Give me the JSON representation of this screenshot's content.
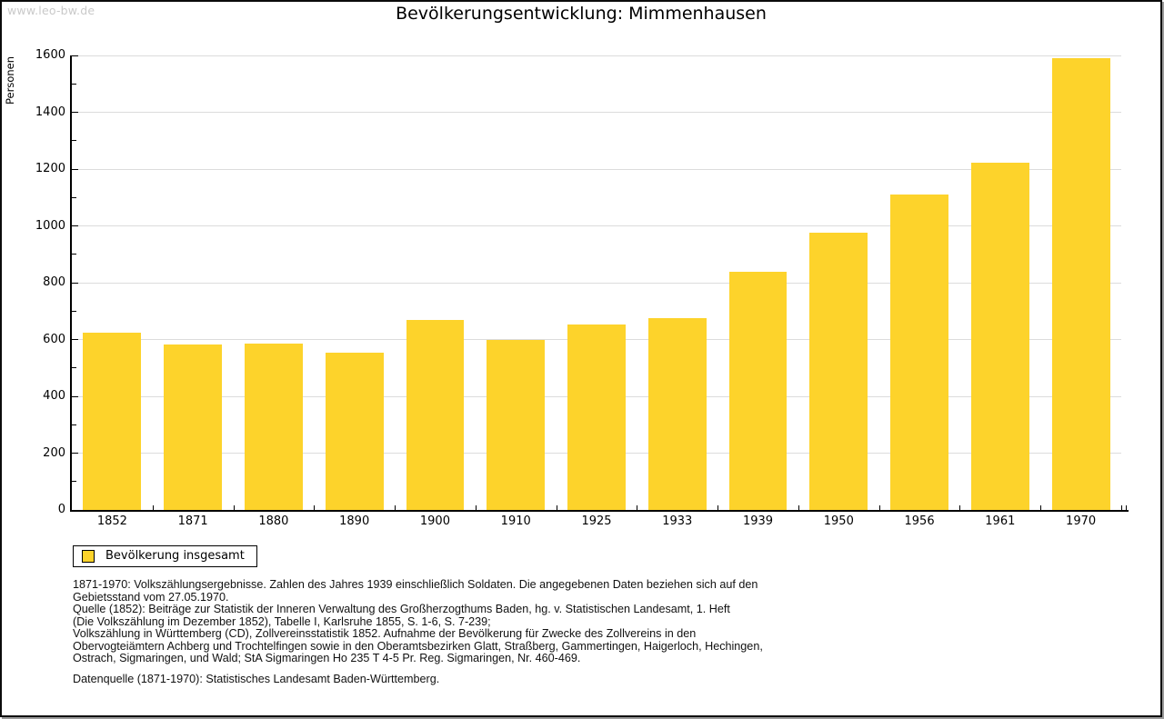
{
  "window": {
    "watermark": "www.leo-bw.de",
    "title": "Bevölkerungsentwicklung: Mimmenhausen"
  },
  "chart_data": {
    "type": "bar",
    "title": "Bevölkerungsentwicklung: Mimmenhausen",
    "xlabel": "",
    "ylabel": "Personen",
    "ylim": [
      0,
      1600
    ],
    "yticks_major": [
      0,
      200,
      400,
      600,
      800,
      1000,
      1200,
      1400,
      1600
    ],
    "ytick_minor_step": 100,
    "grid": "horizontal-major",
    "legend_position": "bottom-left",
    "categories": [
      "1852",
      "1871",
      "1880",
      "1890",
      "1900",
      "1910",
      "1925",
      "1933",
      "1939",
      "1950",
      "1956",
      "1961",
      "1970"
    ],
    "series": [
      {
        "name": "Bevölkerung insgesamt",
        "values": [
          625,
          582,
          586,
          554,
          669,
          597,
          653,
          676,
          838,
          975,
          1109,
          1223,
          1590
        ]
      }
    ],
    "bar_color": "#fdd32b",
    "grid_color": "#dcdcdc",
    "axis_color": "#000000"
  },
  "legend": {
    "label": "Bevölkerung insgesamt",
    "swatch_color": "#fdd32b"
  },
  "footnotes": [
    "1871-1970: Volkszählungsergebnisse. Zahlen des Jahres 1939 einschließlich Soldaten. Die angegebenen Daten beziehen sich auf den",
    "Gebietsstand vom 27.05.1970.",
    "Quelle (1852): Beiträge zur Statistik der Inneren Verwaltung des Großherzogthums Baden, hg. v. Statistischen Landesamt, 1. Heft",
    "(Die Volkszählung im Dezember 1852), Tabelle I, Karlsruhe 1855, S. 1-6, S. 7-239;",
    "Volkszählung in Württemberg (CD), Zollvereinsstatistik 1852. Aufnahme der Bevölkerung für Zwecke des Zollvereins in den",
    "Obervogteiämtern Achberg und Trochtelfingen sowie in den Oberamtsbezirken Glatt, Straßberg, Gammertingen, Haigerloch, Hechingen,",
    "Ostrach, Sigmaringen, und Wald; StA Sigmaringen Ho 235 T 4-5 Pr. Reg. Sigmaringen, Nr. 460-469."
  ],
  "datasource": "Datenquelle (1871-1970): Statistisches Landesamt Baden-Württemberg."
}
